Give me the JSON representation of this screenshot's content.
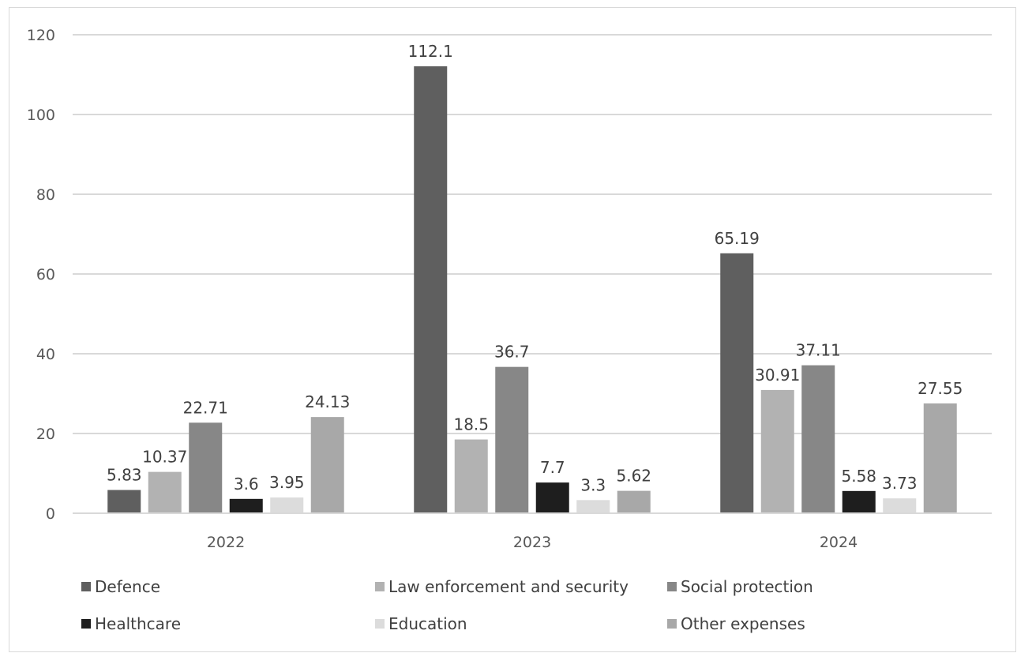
{
  "chart_data": {
    "type": "bar",
    "categories": [
      "2022",
      "2023",
      "2024"
    ],
    "series": [
      {
        "name": "Defence",
        "values": [
          5.83,
          112.1,
          65.19
        ],
        "color": "#5f5f5f"
      },
      {
        "name": "Law enforcement and security",
        "values": [
          10.37,
          18.5,
          30.91
        ],
        "color": "#b2b2b2"
      },
      {
        "name": "Social protection",
        "values": [
          22.71,
          36.7,
          37.11
        ],
        "color": "#878787"
      },
      {
        "name": "Healthcare",
        "values": [
          3.6,
          7.7,
          5.58
        ],
        "color": "#1e1e1e"
      },
      {
        "name": "Education",
        "values": [
          3.95,
          3.3,
          3.73
        ],
        "color": "#dcdcdc"
      },
      {
        "name": "Other expenses",
        "values": [
          24.13,
          5.62,
          27.55
        ],
        "color": "#a8a8a8"
      }
    ],
    "data_labels": [
      [
        "5.83",
        "112.1",
        "65.19"
      ],
      [
        "10.37",
        "18.5",
        "30.91"
      ],
      [
        "22.71",
        "36.7",
        "37.11"
      ],
      [
        "3.6",
        "7.7",
        "5.58"
      ],
      [
        "3.95",
        "3.3",
        "3.73"
      ],
      [
        "24.13",
        "5.62",
        "27.55"
      ]
    ],
    "yticks": [
      "0",
      "20",
      "40",
      "60",
      "80",
      "100",
      "120"
    ],
    "ylim": [
      0,
      120
    ],
    "grid": true,
    "legend_position": "bottom"
  }
}
